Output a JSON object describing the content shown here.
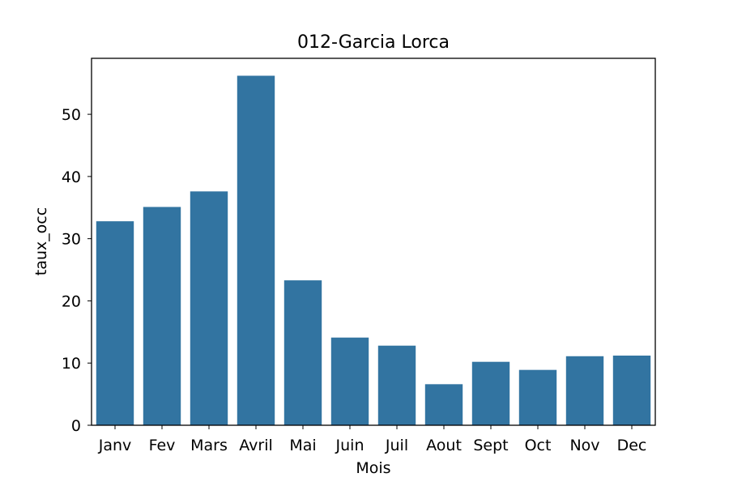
{
  "chart_data": {
    "type": "bar",
    "title": "012-Garcia Lorca",
    "xlabel": "Mois",
    "ylabel": "taux_occ",
    "categories": [
      "Janv",
      "Fev",
      "Mars",
      "Avril",
      "Mai",
      "Juin",
      "Juil",
      "Aout",
      "Sept",
      "Oct",
      "Nov",
      "Dec"
    ],
    "values": [
      32.8,
      35.1,
      37.6,
      56.2,
      23.3,
      14.1,
      12.8,
      6.6,
      10.2,
      8.9,
      11.1,
      11.2
    ],
    "ylim": [
      0,
      59.0
    ],
    "yticks": [
      0,
      10,
      20,
      30,
      40,
      50
    ],
    "grid": false,
    "bar_color": "#3274a1"
  }
}
